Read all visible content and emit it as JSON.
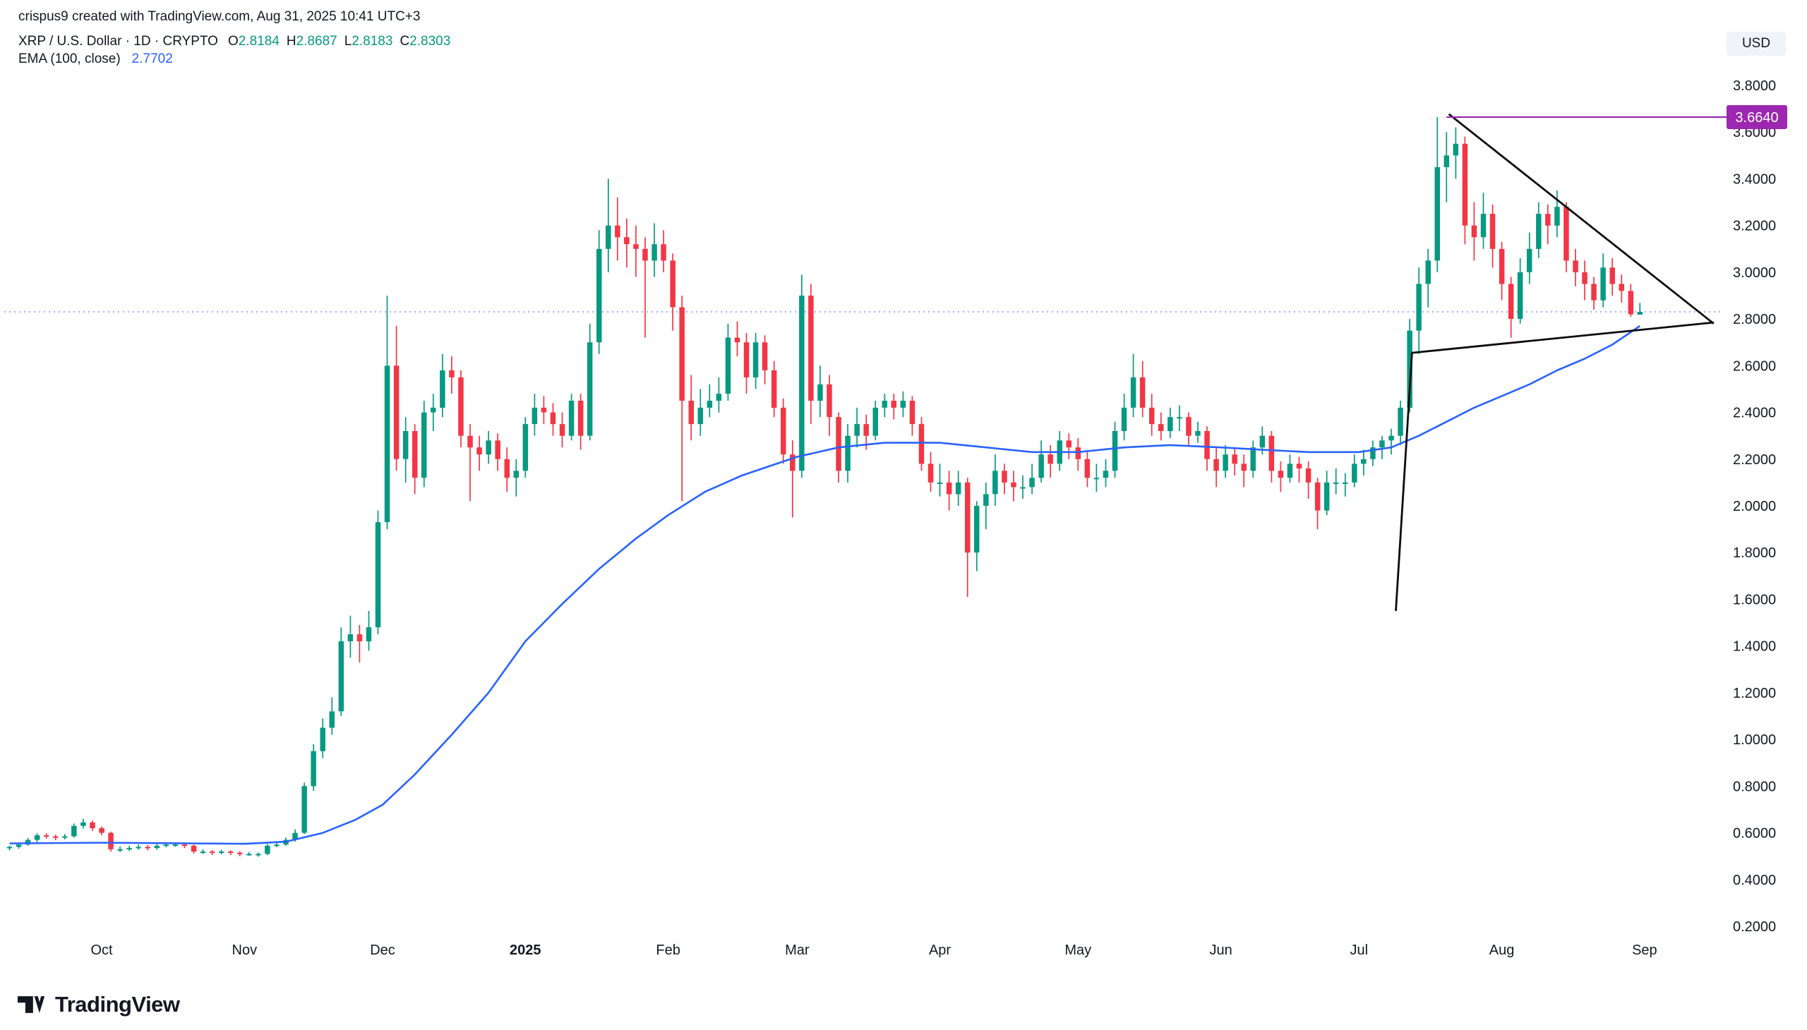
{
  "attribution": "crispus9 created with TradingView.com, Aug 31, 2025 10:41 UTC+3",
  "legend": {
    "symbol_title": "XRP / U.S. Dollar · 1D · CRYPTO",
    "o_label": "O",
    "o_value": "2.8184",
    "h_label": "H",
    "h_value": "2.8687",
    "l_label": "L",
    "l_value": "2.8183",
    "c_label": "C",
    "c_value": "2.8303",
    "indicator_title": "EMA (100, close)",
    "indicator_value": "2.7702"
  },
  "price_scale": {
    "currency_label": "USD",
    "marked_price_label": "3.6640",
    "ticks": [
      "3.8000",
      "3.6000",
      "3.4000",
      "3.2000",
      "3.0000",
      "2.8000",
      "2.6000",
      "2.4000",
      "2.2000",
      "2.0000",
      "1.8000",
      "1.6000",
      "1.4000",
      "1.2000",
      "1.0000",
      "0.8000",
      "0.6000",
      "0.4000",
      "0.2000"
    ]
  },
  "time_scale": {
    "ticks": [
      {
        "label": "Oct",
        "day": 0
      },
      {
        "label": "Nov",
        "day": 31
      },
      {
        "label": "Dec",
        "day": 61
      },
      {
        "label": "2025",
        "day": 92,
        "strong": true
      },
      {
        "label": "Feb",
        "day": 123
      },
      {
        "label": "Mar",
        "day": 151
      },
      {
        "label": "Apr",
        "day": 182
      },
      {
        "label": "May",
        "day": 212
      },
      {
        "label": "Jun",
        "day": 243
      },
      {
        "label": "Jul",
        "day": 273
      },
      {
        "label": "Aug",
        "day": 304
      },
      {
        "label": "Sep",
        "day": 335
      }
    ]
  },
  "footer": {
    "brand": "TradingView"
  },
  "colors": {
    "up": "#089981",
    "down": "#f23645",
    "ema": "#2962ff",
    "ray": "#9c27b0",
    "trendline": "#0b0b0b",
    "axis_text": "#131722"
  },
  "chart_data": {
    "type": "candlestick",
    "title": "XRP / U.S. Dollar · 1D · CRYPTO",
    "ylabel": "USD",
    "ylim": [
      0.2,
      3.8
    ],
    "x_axis_note": "day 0 = Oct 1, 2024; candles sampled every 2 days from mid-Sep 2024 to Aug 31, 2025",
    "start_day": -20,
    "interval_days": 2,
    "price_line": 2.8303,
    "last_ohlc": {
      "open": 2.8184,
      "high": 2.8687,
      "low": 2.8183,
      "close": 2.8303
    },
    "horizontal_ray": {
      "price": 3.664,
      "from_day": 292,
      "color": "#9c27b0"
    },
    "trendlines": [
      {
        "name": "descending-resistance",
        "color": "#0b0b0b",
        "points": [
          [
            292.5,
            3.677
          ],
          [
            350,
            2.78
          ]
        ]
      },
      {
        "name": "ascending-support",
        "color": "#0b0b0b",
        "points": [
          [
            281,
            1.55
          ],
          [
            284.5,
            2.655
          ],
          [
            350,
            2.785
          ]
        ]
      }
    ],
    "ema_100": [
      [
        -20,
        0.555
      ],
      [
        0,
        0.558
      ],
      [
        20,
        0.555
      ],
      [
        31,
        0.553
      ],
      [
        40,
        0.562
      ],
      [
        48,
        0.6
      ],
      [
        55,
        0.655
      ],
      [
        61,
        0.72
      ],
      [
        68,
        0.85
      ],
      [
        76,
        1.02
      ],
      [
        84,
        1.2
      ],
      [
        92,
        1.42
      ],
      [
        100,
        1.58
      ],
      [
        108,
        1.73
      ],
      [
        116,
        1.86
      ],
      [
        123,
        1.96
      ],
      [
        131,
        2.06
      ],
      [
        139,
        2.13
      ],
      [
        151,
        2.21
      ],
      [
        160,
        2.25
      ],
      [
        170,
        2.27
      ],
      [
        182,
        2.27
      ],
      [
        192,
        2.25
      ],
      [
        202,
        2.23
      ],
      [
        212,
        2.23
      ],
      [
        222,
        2.25
      ],
      [
        232,
        2.26
      ],
      [
        243,
        2.25
      ],
      [
        252,
        2.24
      ],
      [
        262,
        2.23
      ],
      [
        273,
        2.23
      ],
      [
        280,
        2.25
      ],
      [
        286,
        2.3
      ],
      [
        292,
        2.36
      ],
      [
        298,
        2.42
      ],
      [
        304,
        2.47
      ],
      [
        310,
        2.52
      ],
      [
        316,
        2.58
      ],
      [
        322,
        2.63
      ],
      [
        328,
        2.69
      ],
      [
        334,
        2.7702
      ]
    ],
    "ohlc": [
      [
        0.535,
        0.545,
        0.525,
        0.54
      ],
      [
        0.54,
        0.558,
        0.532,
        0.55
      ],
      [
        0.55,
        0.578,
        0.545,
        0.57
      ],
      [
        0.57,
        0.598,
        0.56,
        0.59
      ],
      [
        0.59,
        0.598,
        0.575,
        0.585
      ],
      [
        0.585,
        0.592,
        0.568,
        0.58
      ],
      [
        0.58,
        0.595,
        0.572,
        0.585
      ],
      [
        0.585,
        0.64,
        0.58,
        0.63
      ],
      [
        0.63,
        0.66,
        0.618,
        0.645
      ],
      [
        0.645,
        0.652,
        0.608,
        0.62
      ],
      [
        0.62,
        0.628,
        0.59,
        0.6
      ],
      [
        0.6,
        0.605,
        0.52,
        0.53
      ],
      [
        0.53,
        0.542,
        0.518,
        0.53
      ],
      [
        0.53,
        0.545,
        0.522,
        0.535
      ],
      [
        0.535,
        0.55,
        0.528,
        0.54
      ],
      [
        0.54,
        0.548,
        0.525,
        0.535
      ],
      [
        0.535,
        0.552,
        0.528,
        0.545
      ],
      [
        0.545,
        0.56,
        0.538,
        0.55
      ],
      [
        0.55,
        0.558,
        0.54,
        0.55
      ],
      [
        0.55,
        0.555,
        0.535,
        0.545
      ],
      [
        0.545,
        0.55,
        0.512,
        0.52
      ],
      [
        0.52,
        0.53,
        0.51,
        0.52
      ],
      [
        0.52,
        0.526,
        0.505,
        0.515
      ],
      [
        0.515,
        0.528,
        0.508,
        0.52
      ],
      [
        0.52,
        0.525,
        0.505,
        0.515
      ],
      [
        0.515,
        0.522,
        0.5,
        0.51
      ],
      [
        0.51,
        0.518,
        0.502,
        0.51
      ],
      [
        0.51,
        0.516,
        0.498,
        0.51
      ],
      [
        0.51,
        0.552,
        0.505,
        0.545
      ],
      [
        0.545,
        0.56,
        0.538,
        0.55
      ],
      [
        0.55,
        0.58,
        0.545,
        0.57
      ],
      [
        0.57,
        0.615,
        0.562,
        0.6
      ],
      [
        0.6,
        0.815,
        0.595,
        0.8
      ],
      [
        0.8,
        0.98,
        0.78,
        0.95
      ],
      [
        0.95,
        1.09,
        0.92,
        1.05
      ],
      [
        1.05,
        1.18,
        1.02,
        1.12
      ],
      [
        1.12,
        1.48,
        1.1,
        1.42
      ],
      [
        1.42,
        1.53,
        1.35,
        1.45
      ],
      [
        1.45,
        1.49,
        1.33,
        1.42
      ],
      [
        1.42,
        1.55,
        1.38,
        1.48
      ],
      [
        1.48,
        1.98,
        1.45,
        1.93
      ],
      [
        1.93,
        2.9,
        1.9,
        2.6
      ],
      [
        2.6,
        2.77,
        2.15,
        2.2
      ],
      [
        2.2,
        2.38,
        2.1,
        2.32
      ],
      [
        2.32,
        2.35,
        2.05,
        2.12
      ],
      [
        2.12,
        2.45,
        2.08,
        2.4
      ],
      [
        2.4,
        2.48,
        2.32,
        2.42
      ],
      [
        2.42,
        2.65,
        2.38,
        2.58
      ],
      [
        2.58,
        2.64,
        2.48,
        2.55
      ],
      [
        2.55,
        2.58,
        2.25,
        2.3
      ],
      [
        2.3,
        2.35,
        2.02,
        2.25
      ],
      [
        2.25,
        2.3,
        2.15,
        2.22
      ],
      [
        2.22,
        2.32,
        2.18,
        2.28
      ],
      [
        2.28,
        2.31,
        2.15,
        2.2
      ],
      [
        2.2,
        2.25,
        2.06,
        2.12
      ],
      [
        2.12,
        2.2,
        2.04,
        2.15
      ],
      [
        2.15,
        2.38,
        2.12,
        2.35
      ],
      [
        2.35,
        2.48,
        2.3,
        2.42
      ],
      [
        2.42,
        2.47,
        2.35,
        2.4
      ],
      [
        2.4,
        2.44,
        2.3,
        2.35
      ],
      [
        2.35,
        2.4,
        2.25,
        2.3
      ],
      [
        2.3,
        2.48,
        2.28,
        2.45
      ],
      [
        2.45,
        2.48,
        2.24,
        2.3
      ],
      [
        2.3,
        2.78,
        2.28,
        2.7
      ],
      [
        2.7,
        3.18,
        2.65,
        3.1
      ],
      [
        3.1,
        3.4,
        3.0,
        3.2
      ],
      [
        3.2,
        3.32,
        3.05,
        3.15
      ],
      [
        3.15,
        3.23,
        3.02,
        3.12
      ],
      [
        3.12,
        3.2,
        2.98,
        3.1
      ],
      [
        3.1,
        3.15,
        2.72,
        3.05
      ],
      [
        3.05,
        3.21,
        2.98,
        3.12
      ],
      [
        3.12,
        3.18,
        3.0,
        3.05
      ],
      [
        3.05,
        3.08,
        2.75,
        2.85
      ],
      [
        2.85,
        2.9,
        2.02,
        2.45
      ],
      [
        2.45,
        2.56,
        2.28,
        2.35
      ],
      [
        2.35,
        2.5,
        2.3,
        2.42
      ],
      [
        2.42,
        2.52,
        2.38,
        2.45
      ],
      [
        2.45,
        2.55,
        2.4,
        2.48
      ],
      [
        2.48,
        2.78,
        2.45,
        2.72
      ],
      [
        2.72,
        2.79,
        2.64,
        2.7
      ],
      [
        2.7,
        2.74,
        2.48,
        2.55
      ],
      [
        2.55,
        2.74,
        2.5,
        2.7
      ],
      [
        2.7,
        2.73,
        2.52,
        2.58
      ],
      [
        2.58,
        2.62,
        2.38,
        2.42
      ],
      [
        2.42,
        2.46,
        2.18,
        2.22
      ],
      [
        2.22,
        2.28,
        1.95,
        2.15
      ],
      [
        2.15,
        2.99,
        2.12,
        2.9
      ],
      [
        2.9,
        2.95,
        2.35,
        2.45
      ],
      [
        2.45,
        2.6,
        2.38,
        2.52
      ],
      [
        2.52,
        2.56,
        2.3,
        2.38
      ],
      [
        2.38,
        2.4,
        2.1,
        2.15
      ],
      [
        2.15,
        2.35,
        2.1,
        2.3
      ],
      [
        2.3,
        2.42,
        2.25,
        2.35
      ],
      [
        2.35,
        2.39,
        2.24,
        2.3
      ],
      [
        2.3,
        2.45,
        2.28,
        2.42
      ],
      [
        2.42,
        2.48,
        2.38,
        2.45
      ],
      [
        2.45,
        2.48,
        2.37,
        2.42
      ],
      [
        2.42,
        2.49,
        2.38,
        2.45
      ],
      [
        2.45,
        2.47,
        2.3,
        2.35
      ],
      [
        2.35,
        2.38,
        2.15,
        2.18
      ],
      [
        2.18,
        2.23,
        2.06,
        2.1
      ],
      [
        2.1,
        2.18,
        2.04,
        2.1
      ],
      [
        2.1,
        2.15,
        1.98,
        2.05
      ],
      [
        2.05,
        2.15,
        2.0,
        2.1
      ],
      [
        2.1,
        2.12,
        1.61,
        1.8
      ],
      [
        1.8,
        2.02,
        1.72,
        2.0
      ],
      [
        2.0,
        2.1,
        1.9,
        2.05
      ],
      [
        2.05,
        2.22,
        2.0,
        2.15
      ],
      [
        2.15,
        2.18,
        2.05,
        2.1
      ],
      [
        2.1,
        2.15,
        2.02,
        2.08
      ],
      [
        2.08,
        2.13,
        2.03,
        2.08
      ],
      [
        2.08,
        2.18,
        2.05,
        2.12
      ],
      [
        2.12,
        2.28,
        2.1,
        2.22
      ],
      [
        2.22,
        2.26,
        2.12,
        2.18
      ],
      [
        2.18,
        2.32,
        2.15,
        2.28
      ],
      [
        2.28,
        2.31,
        2.2,
        2.25
      ],
      [
        2.25,
        2.29,
        2.15,
        2.2
      ],
      [
        2.2,
        2.23,
        2.08,
        2.12
      ],
      [
        2.12,
        2.18,
        2.06,
        2.12
      ],
      [
        2.12,
        2.2,
        2.08,
        2.15
      ],
      [
        2.15,
        2.36,
        2.12,
        2.32
      ],
      [
        2.32,
        2.48,
        2.28,
        2.42
      ],
      [
        2.42,
        2.65,
        2.38,
        2.55
      ],
      [
        2.55,
        2.62,
        2.38,
        2.42
      ],
      [
        2.42,
        2.48,
        2.3,
        2.35
      ],
      [
        2.35,
        2.4,
        2.28,
        2.32
      ],
      [
        2.32,
        2.42,
        2.29,
        2.38
      ],
      [
        2.38,
        2.43,
        2.32,
        2.38
      ],
      [
        2.38,
        2.4,
        2.26,
        2.3
      ],
      [
        2.3,
        2.36,
        2.27,
        2.32
      ],
      [
        2.32,
        2.34,
        2.15,
        2.2
      ],
      [
        2.2,
        2.25,
        2.08,
        2.15
      ],
      [
        2.15,
        2.26,
        2.12,
        2.22
      ],
      [
        2.22,
        2.25,
        2.13,
        2.18
      ],
      [
        2.18,
        2.22,
        2.08,
        2.15
      ],
      [
        2.15,
        2.28,
        2.12,
        2.25
      ],
      [
        2.25,
        2.34,
        2.22,
        2.3
      ],
      [
        2.3,
        2.32,
        2.1,
        2.15
      ],
      [
        2.15,
        2.19,
        2.06,
        2.12
      ],
      [
        2.12,
        2.22,
        2.1,
        2.18
      ],
      [
        2.18,
        2.21,
        2.1,
        2.16
      ],
      [
        2.16,
        2.19,
        2.03,
        2.1
      ],
      [
        2.1,
        2.12,
        1.9,
        1.98
      ],
      [
        1.98,
        2.15,
        1.96,
        2.1
      ],
      [
        2.1,
        2.16,
        2.05,
        2.1
      ],
      [
        2.1,
        2.14,
        2.04,
        2.1
      ],
      [
        2.1,
        2.22,
        2.08,
        2.18
      ],
      [
        2.18,
        2.24,
        2.13,
        2.2
      ],
      [
        2.2,
        2.28,
        2.17,
        2.25
      ],
      [
        2.25,
        2.3,
        2.2,
        2.28
      ],
      [
        2.28,
        2.33,
        2.22,
        2.3
      ],
      [
        2.3,
        2.45,
        2.26,
        2.42
      ],
      [
        2.42,
        2.8,
        2.4,
        2.75
      ],
      [
        2.75,
        3.02,
        2.65,
        2.95
      ],
      [
        2.95,
        3.1,
        2.85,
        3.05
      ],
      [
        3.05,
        3.664,
        3.0,
        3.45
      ],
      [
        3.45,
        3.6,
        3.3,
        3.5
      ],
      [
        3.5,
        3.62,
        3.4,
        3.55
      ],
      [
        3.55,
        3.58,
        3.12,
        3.2
      ],
      [
        3.2,
        3.3,
        3.05,
        3.15
      ],
      [
        3.15,
        3.34,
        3.1,
        3.25
      ],
      [
        3.25,
        3.29,
        3.02,
        3.1
      ],
      [
        3.1,
        3.13,
        2.88,
        2.95
      ],
      [
        2.95,
        2.98,
        2.72,
        2.8
      ],
      [
        2.8,
        3.06,
        2.78,
        3.0
      ],
      [
        3.0,
        3.17,
        2.95,
        3.1
      ],
      [
        3.1,
        3.3,
        3.06,
        3.25
      ],
      [
        3.25,
        3.29,
        3.12,
        3.2
      ],
      [
        3.2,
        3.35,
        3.15,
        3.28
      ],
      [
        3.28,
        3.3,
        3.0,
        3.05
      ],
      [
        3.05,
        3.1,
        2.94,
        3.0
      ],
      [
        3.0,
        3.05,
        2.88,
        2.95
      ],
      [
        2.95,
        2.98,
        2.84,
        2.88
      ],
      [
        2.88,
        3.08,
        2.85,
        3.02
      ],
      [
        3.02,
        3.06,
        2.9,
        2.95
      ],
      [
        2.95,
        2.99,
        2.87,
        2.92
      ],
      [
        2.92,
        2.95,
        2.81,
        2.82
      ],
      [
        2.8184,
        2.8687,
        2.8183,
        2.8303
      ]
    ]
  }
}
